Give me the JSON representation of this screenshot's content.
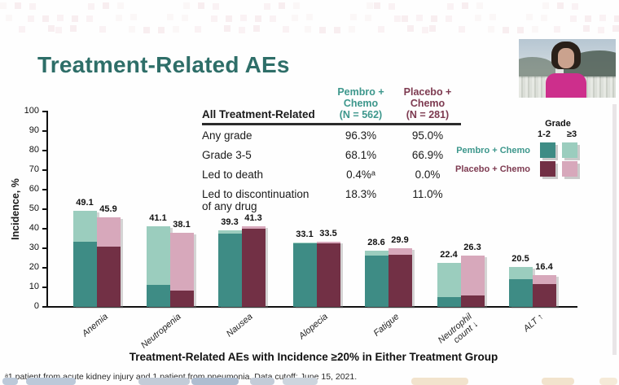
{
  "slide": {
    "title": "Treatment-Related AEs",
    "footnote": "ᵃ1 patient from acute kidney injury and 1 patient from pneumonia. Data cutoff: June 15, 2021."
  },
  "colors": {
    "title_teal": "#2e6e68",
    "pembro_header_teal": "#3d978c",
    "placebo_header_maroon": "#7d3a50",
    "pembro_grade12_dark_teal": "#3e8c85",
    "pembro_grade3_light_teal": "#9bcdbe",
    "placebo_grade12_dark_maroon": "#723045",
    "placebo_grade3_light_pink": "#d7a8bb"
  },
  "table": {
    "col_headers": {
      "label": "All Treatment-Related",
      "pembro": "Pembro +\nChemo\n(N = 562)",
      "placebo": "Placebo +\nChemo\n(N = 281)"
    },
    "rows": [
      {
        "label": "Any grade",
        "pembro": "96.3%",
        "placebo": "95.0%"
      },
      {
        "label": "Grade 3-5",
        "pembro": "68.1%",
        "placebo": "66.9%"
      },
      {
        "label": "Led to death",
        "pembro": "0.4%ᵃ",
        "placebo": "0.0%"
      },
      {
        "label": "Led to discontinuation\nof any drug",
        "pembro": "18.3%",
        "placebo": "11.0%"
      }
    ]
  },
  "legend": {
    "grade_header": "Grade",
    "grade_cols": [
      "1-2",
      "≥3"
    ],
    "rows": [
      {
        "label": "Pembro + Chemo",
        "text_color": "#3d978c",
        "swatches": [
          "#3e8c85",
          "#9bcdbe"
        ]
      },
      {
        "label": "Placebo + Chemo",
        "text_color": "#7d3a50",
        "swatches": [
          "#723045",
          "#d7a8bb"
        ]
      }
    ]
  },
  "chart_data": {
    "type": "bar",
    "subtype": "grouped-stacked",
    "title": "",
    "xlabel": "Treatment-Related AEs with Incidence ≥20% in Either Treatment Group",
    "ylabel": "Incidence, %",
    "ylim": [
      0,
      100
    ],
    "ytick_step": 10,
    "grid": false,
    "legend_position": "upper-right",
    "categories": [
      "Anemia",
      "Neutropenia",
      "Nausea",
      "Alopecia",
      "Fatigue",
      "Neutrophil\ncount ↓",
      "ALT ↑"
    ],
    "groups": [
      {
        "name": "Pembro + Chemo",
        "totals": [
          49.1,
          41.1,
          39.3,
          33.1,
          28.6,
          22.4,
          20.5
        ],
        "grade_1_2": [
          33.2,
          11.3,
          37.5,
          32.3,
          26.2,
          5.0,
          14.0
        ],
        "grade_ge3": [
          15.9,
          29.8,
          1.8,
          0.8,
          2.4,
          17.4,
          6.5
        ],
        "color_grade_1_2": "#3e8c85",
        "color_grade_ge3": "#9bcdbe"
      },
      {
        "name": "Placebo + Chemo",
        "totals": [
          45.9,
          38.1,
          41.3,
          33.5,
          29.9,
          26.3,
          16.4
        ],
        "grade_1_2": [
          31.0,
          8.4,
          40.0,
          32.5,
          26.6,
          6.0,
          11.5
        ],
        "grade_ge3": [
          14.9,
          29.7,
          1.3,
          1.0,
          3.3,
          20.3,
          4.9
        ],
        "color_grade_1_2": "#723045",
        "color_grade_ge3": "#d7a8bb"
      }
    ]
  }
}
